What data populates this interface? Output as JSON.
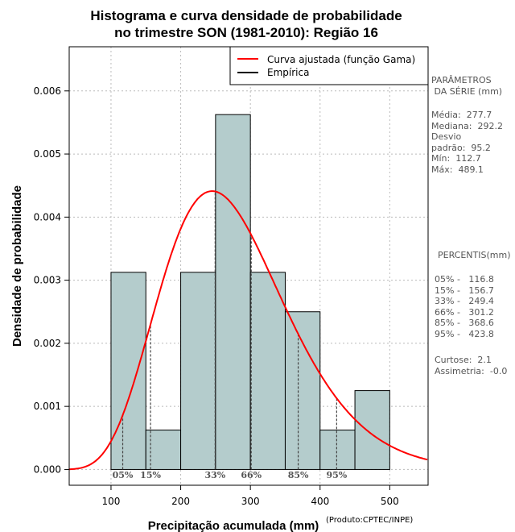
{
  "chart_data": {
    "type": "bar",
    "title_lines": [
      "Histograma e curva densidade de probabilidade",
      "no trimestre SON (1981-2010): Região 16"
    ],
    "xlabel": "Precipitação acumulada (mm)",
    "ylabel": "Densidade de probabilidade",
    "xlim": [
      40,
      555
    ],
    "ylim": [
      -0.00025,
      0.0067
    ],
    "xticks": [
      "100",
      "200",
      "300",
      "400",
      "500"
    ],
    "xtick_values": [
      100,
      200,
      300,
      400,
      500
    ],
    "yticks": [
      "0.000",
      "0.001",
      "0.002",
      "0.003",
      "0.004",
      "0.005",
      "0.006"
    ],
    "ytick_values": [
      0,
      0.001,
      0.002,
      0.003,
      0.004,
      0.005,
      0.006
    ],
    "grid": true,
    "bins": [
      {
        "from": 100,
        "to": 150,
        "density": 0.003125
      },
      {
        "from": 150,
        "to": 200,
        "density": 0.000625
      },
      {
        "from": 200,
        "to": 250,
        "density": 0.003125
      },
      {
        "from": 250,
        "to": 300,
        "density": 0.005625
      },
      {
        "from": 300,
        "to": 350,
        "density": 0.003125
      },
      {
        "from": 350,
        "to": 400,
        "density": 0.0025
      },
      {
        "from": 400,
        "to": 450,
        "density": 0.000625
      },
      {
        "from": 450,
        "to": 500,
        "density": 0.00125
      }
    ],
    "fit_curve": {
      "name": "Curva ajustada (função Gama)",
      "color": "#ff0000",
      "distribution": "gamma",
      "mean": 277.7,
      "sd": 95.2
    },
    "legend": [
      {
        "label": "Curva ajustada (função Gama)",
        "color": "#ff0000"
      },
      {
        "label": "Empírica",
        "color": "#000000"
      }
    ],
    "legend_position": "top-right",
    "percentile_markers": [
      {
        "label": "05%",
        "value": 116.8
      },
      {
        "label": "15%",
        "value": 156.7
      },
      {
        "label": "33%",
        "value": 249.4
      },
      {
        "label": "66%",
        "value": 301.2
      },
      {
        "label": "85%",
        "value": 368.6
      },
      {
        "label": "95%",
        "value": 423.8
      }
    ],
    "bar_color": "#b4cccc"
  },
  "side_panel": {
    "params_header": "PARÂMETROS\n DA SÉRIE (mm)",
    "stats": "Média:  277.7\nMediana:  292.2\nDesvio\npadrão:  95.2\nMín:  112.7\nMáx:  489.1",
    "percentiles_header": "PERCENTIS(mm)",
    "percentiles": "05% -   116.8\n15% -   156.7\n33% -   249.4\n66% -   301.2\n85% -   368.6\n95% -   423.8",
    "shape": "Curtose:  2.1\nAssimetria:  -0.0"
  },
  "credit": "(Produto:CPTEC/INPE)"
}
